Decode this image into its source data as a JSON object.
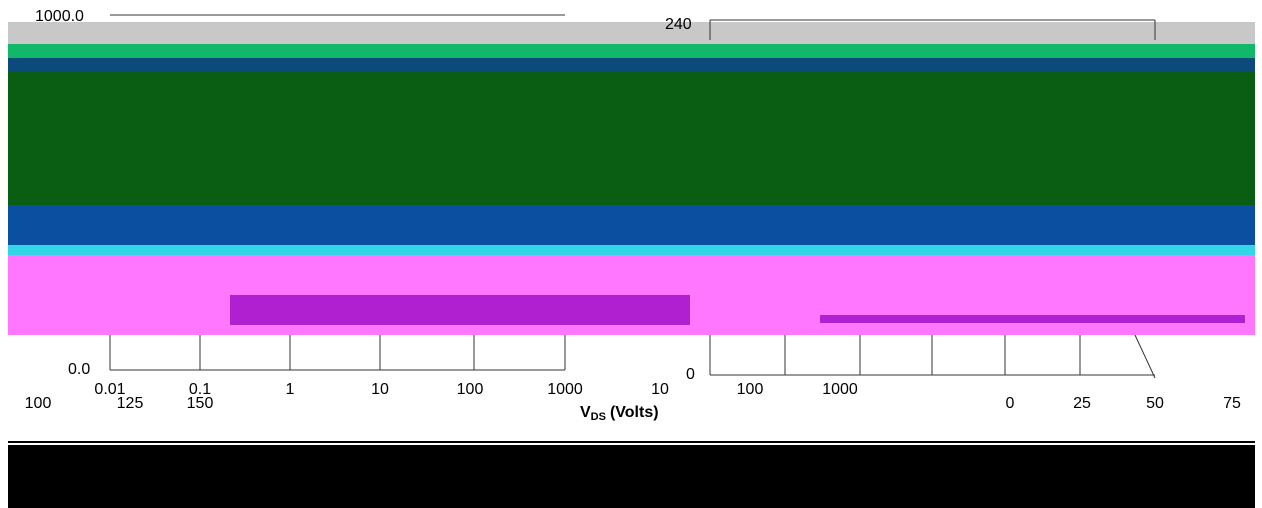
{
  "left_panel": {
    "y_labels": [
      "1000.0",
      "0.0"
    ],
    "x_labels": [
      "0.01",
      "0.1",
      "1",
      "10",
      "100",
      "1000"
    ]
  },
  "right_panel": {
    "y_labels": [
      "240",
      "0"
    ],
    "x_labels": [
      "10",
      "100",
      "1000"
    ]
  },
  "temperature_axis": {
    "left_labels": [
      "100",
      "125",
      "150"
    ],
    "right_labels": [
      "0",
      "25",
      "50",
      "75"
    ]
  },
  "x_axis_title": {
    "symbol": "V",
    "subscript": "DS",
    "unit": "(Volts)"
  }
}
